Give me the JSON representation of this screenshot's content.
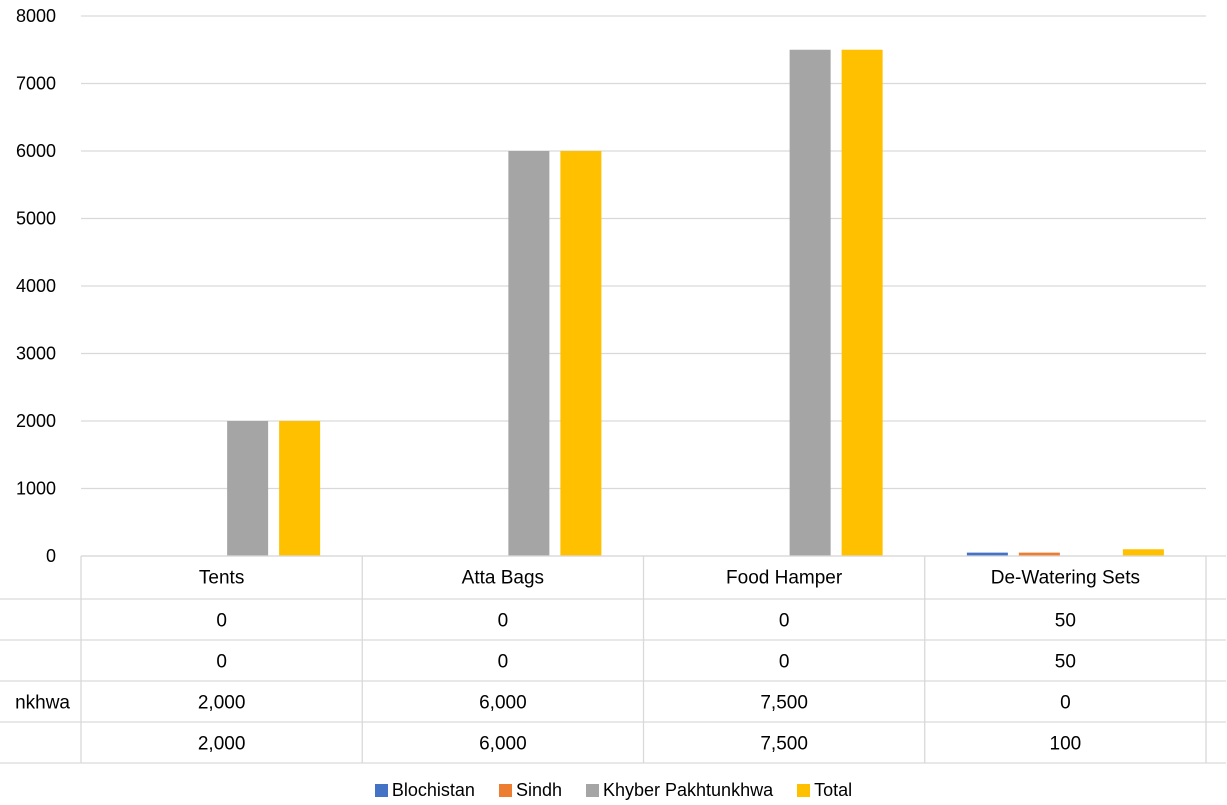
{
  "chart_data": {
    "type": "bar",
    "title": "",
    "xlabel": "",
    "ylabel": "",
    "ylim": [
      0,
      8000
    ],
    "yticks": [
      "0",
      "1000",
      "2000",
      "3000",
      "4000",
      "5000",
      "6000",
      "7000",
      "8000"
    ],
    "grid": true,
    "categories": [
      "Tents",
      "Atta Bags",
      "Food Hamper",
      "De-Watering Sets"
    ],
    "series": [
      {
        "name": "Blochistan",
        "row_label": "",
        "color": "#4472C4",
        "values": [
          0,
          0,
          0,
          50
        ],
        "display": [
          "0",
          "0",
          "0",
          "50"
        ]
      },
      {
        "name": "Sindh",
        "row_label": "",
        "color": "#ED7D31",
        "values": [
          0,
          0,
          0,
          50
        ],
        "display": [
          "0",
          "0",
          "0",
          "50"
        ]
      },
      {
        "name": "Khyber Pakhtunkhwa",
        "row_label": "nkhwa",
        "color": "#A5A5A5",
        "values": [
          2000,
          6000,
          7500,
          0
        ],
        "display": [
          "2,000",
          "6,000",
          "7,500",
          "0"
        ]
      },
      {
        "name": "Total",
        "row_label": "",
        "color": "#FFC000",
        "values": [
          2000,
          6000,
          7500,
          100
        ],
        "display": [
          "2,000",
          "6,000",
          "7,500",
          "100"
        ]
      }
    ],
    "legend_position": "bottom",
    "data_table": true
  }
}
